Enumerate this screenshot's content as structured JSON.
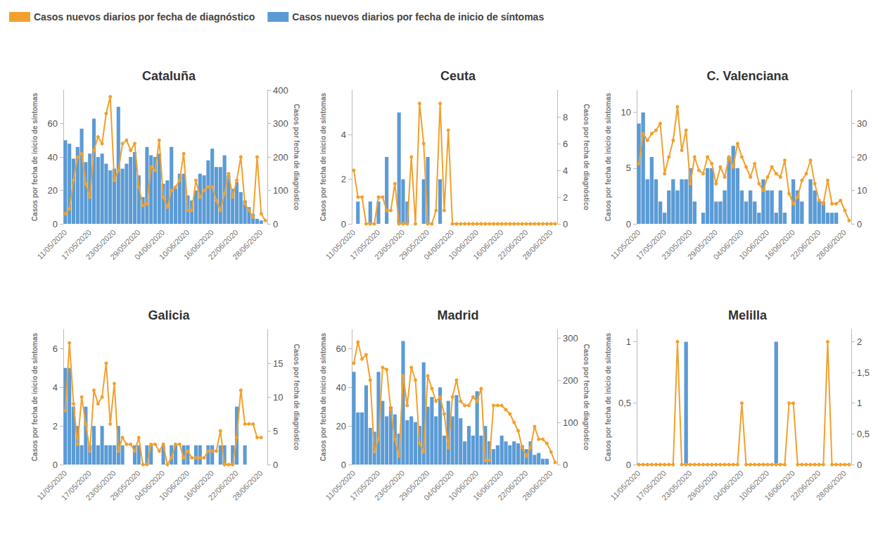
{
  "chart_data": [
    {
      "type": "bar",
      "title": "Cataluña",
      "legend": "top-left",
      "ylabel": "Casos por fecha de inicio de síntomas",
      "y2label": "Casos por fecha de diagnóstico",
      "categories": [
        "11/05/2020",
        null,
        null,
        null,
        null,
        null,
        "17/05/2020",
        null,
        null,
        null,
        null,
        null,
        "23/05/2020",
        null,
        null,
        null,
        null,
        null,
        "29/05/2020",
        null,
        null,
        null,
        null,
        null,
        "04/06/2020",
        null,
        null,
        null,
        null,
        null,
        "10/06/2020",
        null,
        null,
        null,
        null,
        null,
        "16/06/2020",
        null,
        null,
        null,
        null,
        null,
        "22/06/2020",
        null,
        null,
        null,
        null,
        null,
        "28/06/2020",
        null
      ],
      "ylim": [
        0,
        80
      ],
      "yticks": [
        0,
        20,
        40,
        60
      ],
      "y2lim": [
        0,
        400
      ],
      "y2ticks": [
        0,
        100,
        200,
        300,
        400
      ],
      "series": [
        {
          "name": "Casos nuevos diarios por fecha de diagnóstico",
          "type": "line",
          "axis": "y2",
          "color": "#f2a02c",
          "marker": "circle",
          "values": [
            30,
            45,
            130,
            200,
            210,
            120,
            80,
            220,
            260,
            240,
            330,
            380,
            130,
            160,
            240,
            250,
            220,
            240,
            110,
            55,
            60,
            170,
            160,
            250,
            80,
            50,
            100,
            110,
            130,
            210,
            40,
            40,
            130,
            80,
            100,
            110,
            110,
            70,
            40,
            90,
            150,
            80,
            130,
            200,
            60,
            40,
            20,
            200,
            30,
            10
          ]
        },
        {
          "name": "Casos nuevos diarios por fecha de inicio de síntomas",
          "type": "bar",
          "color": "#5b9bd5",
          "values": [
            50,
            48,
            39,
            46,
            57,
            37,
            42,
            63,
            40,
            42,
            36,
            32,
            33,
            70,
            33,
            36,
            40,
            43,
            29,
            16,
            46,
            41,
            40,
            42,
            24,
            26,
            46,
            21,
            30,
            30,
            17,
            14,
            20,
            30,
            29,
            38,
            45,
            34,
            34,
            41,
            29,
            21,
            25,
            19,
            14,
            10,
            6,
            3,
            2,
            0
          ]
        }
      ]
    },
    {
      "type": "bar",
      "title": "Ceuta",
      "ylabel": "Casos por fecha de inicio de síntomas",
      "y2label": "Casos por fecha de diagnóstico",
      "categories": [
        "11/05/2020",
        null,
        null,
        null,
        null,
        null,
        "17/05/2020",
        null,
        null,
        null,
        null,
        null,
        "23/05/2020",
        null,
        null,
        null,
        null,
        null,
        "29/05/2020",
        null,
        null,
        null,
        null,
        null,
        "04/06/2020",
        null,
        null,
        null,
        null,
        null,
        "10/06/2020",
        null,
        null,
        null,
        null,
        null,
        "16/06/2020",
        null,
        null,
        null,
        null,
        null,
        "22/06/2020",
        null,
        null,
        null,
        null,
        null,
        "28/06/2020",
        null
      ],
      "ylim": [
        0,
        6
      ],
      "yticks": [
        0,
        2,
        4
      ],
      "y2lim": [
        0,
        10
      ],
      "y2ticks": [
        0,
        2,
        4,
        6,
        8
      ],
      "series": [
        {
          "name": "Casos nuevos diarios por fecha de diagnóstico",
          "type": "line",
          "axis": "y2",
          "color": "#f2a02c",
          "marker": "circle",
          "values": [
            4,
            2,
            2,
            0,
            0,
            0,
            2,
            2,
            1,
            1,
            3,
            0,
            0,
            0,
            5,
            0,
            9,
            6,
            0,
            0,
            1,
            9,
            1,
            7,
            0,
            0,
            0,
            0,
            0,
            0,
            0,
            0,
            0,
            0,
            0,
            0,
            0,
            0,
            0,
            0,
            0,
            0,
            0,
            0,
            0,
            0,
            0,
            0,
            0,
            0
          ]
        },
        {
          "name": "Casos nuevos diarios por fecha de inicio de síntomas",
          "type": "bar",
          "color": "#5b9bd5",
          "values": [
            0,
            1,
            0,
            0,
            1,
            0,
            1,
            0,
            3,
            0,
            0,
            5,
            2,
            1,
            0,
            0,
            0,
            2,
            3,
            0,
            0,
            2,
            0,
            0,
            0,
            0,
            0,
            0,
            0,
            0,
            0,
            0,
            0,
            0,
            0,
            0,
            0,
            0,
            0,
            0,
            0,
            0,
            0,
            0,
            0,
            0,
            0,
            0,
            0,
            0
          ]
        }
      ]
    },
    {
      "type": "bar",
      "title": "C. Valenciana",
      "ylabel": "Casos por fecha de inicio de síntomas",
      "categories": [
        "11/05/2020",
        null,
        null,
        null,
        null,
        null,
        "17/05/2020",
        null,
        null,
        null,
        null,
        null,
        "23/05/2020",
        null,
        null,
        null,
        null,
        null,
        "29/05/2020",
        null,
        null,
        null,
        null,
        null,
        "04/06/2020",
        null,
        null,
        null,
        null,
        null,
        "10/06/2020",
        null,
        null,
        null,
        null,
        null,
        "16/06/2020",
        null,
        null,
        null,
        null,
        null,
        "22/06/2020",
        null,
        null,
        null,
        null,
        null,
        "28/06/2020",
        null
      ],
      "ylim": [
        0,
        12
      ],
      "yticks": [
        0,
        5,
        10
      ],
      "y2lim": [
        0,
        40
      ],
      "y2ticks": [
        0,
        10,
        20,
        30
      ],
      "series": [
        {
          "name": "Casos nuevos diarios por fecha de diagnóstico",
          "type": "line",
          "axis": "y2",
          "color": "#f2a02c",
          "marker": "circle",
          "values": [
            18,
            27,
            25,
            27,
            28,
            30,
            15,
            20,
            25,
            35,
            22,
            28,
            12,
            20,
            16,
            15,
            20,
            18,
            12,
            17,
            14,
            20,
            17,
            24,
            20,
            17,
            14,
            18,
            12,
            10,
            14,
            17,
            15,
            14,
            19,
            9,
            6,
            8,
            13,
            15,
            19,
            12,
            7,
            6,
            13,
            6,
            6,
            7,
            4,
            1
          ]
        },
        {
          "name": "Casos nuevos diarios por fecha de inicio de síntomas",
          "type": "bar",
          "color": "#5b9bd5",
          "values": [
            9,
            10,
            4,
            6,
            4,
            2,
            1,
            3,
            4,
            3,
            4,
            4,
            5,
            2,
            0,
            1,
            5,
            5,
            2,
            2,
            3,
            6,
            7,
            5,
            3,
            2,
            3,
            2,
            1,
            4,
            3,
            3,
            1,
            3,
            1,
            0,
            4,
            3,
            2,
            0,
            4,
            3,
            2,
            2,
            1,
            1,
            1,
            0,
            0,
            0
          ]
        }
      ]
    },
    {
      "type": "bar",
      "title": "Galicia",
      "ylabel": "Casos por fecha de inicio de síntomas",
      "y2label": "Casos por fecha de diagnóstico",
      "categories": [
        "11/05/2020",
        null,
        null,
        null,
        null,
        null,
        "17/05/2020",
        null,
        null,
        null,
        null,
        null,
        "23/05/2020",
        null,
        null,
        null,
        null,
        null,
        "29/05/2020",
        null,
        null,
        null,
        null,
        null,
        "04/06/2020",
        null,
        null,
        null,
        null,
        null,
        "10/06/2020",
        null,
        null,
        null,
        null,
        null,
        "16/06/2020",
        null,
        null,
        null,
        null,
        null,
        "22/06/2020",
        null,
        null,
        null,
        null,
        null,
        "28/06/2020",
        null
      ],
      "ylim": [
        0,
        7
      ],
      "yticks": [
        0,
        2,
        4,
        6
      ],
      "y2lim": [
        0,
        20
      ],
      "y2ticks": [
        0,
        5,
        10,
        15
      ],
      "series": [
        {
          "name": "Casos nuevos diarios por fecha de diagnóstico",
          "type": "line",
          "axis": "y2",
          "color": "#f2a02c",
          "marker": "circle",
          "values": [
            8,
            18,
            9,
            3,
            10,
            6,
            2,
            11,
            9,
            10,
            15,
            6,
            12,
            2,
            4,
            3,
            3,
            2,
            4,
            0,
            0,
            3,
            3,
            2,
            3,
            0,
            1,
            3,
            3,
            1,
            2,
            1,
            1,
            1,
            1,
            2,
            2,
            2,
            5,
            0,
            0,
            0,
            4,
            11,
            6,
            6,
            6,
            4,
            4,
            null
          ]
        },
        {
          "name": "Casos nuevos diarios por fecha de inicio de síntomas",
          "type": "bar",
          "color": "#5b9bd5",
          "values": [
            5,
            5,
            3,
            2,
            1,
            3,
            1,
            2,
            1,
            2,
            1,
            1,
            1,
            2,
            1,
            0,
            0,
            1,
            1,
            0,
            1,
            1,
            0,
            0,
            1,
            0,
            1,
            1,
            0,
            1,
            1,
            0,
            1,
            1,
            0,
            1,
            1,
            0,
            1,
            1,
            0,
            1,
            3,
            0,
            1,
            0,
            0,
            0,
            0,
            0
          ]
        }
      ]
    },
    {
      "type": "bar",
      "title": "Madrid",
      "ylabel": "Casos por fecha de inicio de síntomas",
      "y2label": "Casos por fecha de diagnóstico",
      "categories": [
        "11/05/2020",
        null,
        null,
        null,
        null,
        null,
        "17/05/2020",
        null,
        null,
        null,
        null,
        null,
        "23/05/2020",
        null,
        null,
        null,
        null,
        null,
        "29/05/2020",
        null,
        null,
        null,
        null,
        null,
        "04/06/2020",
        null,
        null,
        null,
        null,
        null,
        "10/06/2020",
        null,
        null,
        null,
        null,
        null,
        "16/06/2020",
        null,
        null,
        null,
        null,
        null,
        "22/06/2020",
        null,
        null,
        null,
        null,
        null,
        "28/06/2020",
        null
      ],
      "ylim": [
        0,
        70
      ],
      "yticks": [
        0,
        20,
        40,
        60
      ],
      "y2lim": [
        0,
        320
      ],
      "y2ticks": [
        0,
        100,
        200,
        300
      ],
      "series": [
        {
          "name": "Casos nuevos diarios por fecha de diagnóstico",
          "type": "line",
          "axis": "y2",
          "color": "#f2a02c",
          "marker": "circle",
          "values": [
            240,
            290,
            250,
            260,
            200,
            30,
            60,
            230,
            225,
            130,
            60,
            20,
            210,
            140,
            230,
            200,
            50,
            30,
            210,
            180,
            150,
            160,
            120,
            40,
            160,
            200,
            150,
            140,
            140,
            160,
            150,
            180,
            10,
            10,
            140,
            140,
            140,
            130,
            120,
            100,
            80,
            40,
            20,
            40,
            90,
            60,
            60,
            50,
            30,
            5
          ]
        },
        {
          "name": "Casos nuevos diarios por fecha de inicio de síntomas",
          "type": "bar",
          "color": "#5b9bd5",
          "values": [
            48,
            27,
            27,
            41,
            19,
            17,
            48,
            33,
            25,
            30,
            26,
            16,
            64,
            23,
            25,
            22,
            20,
            53,
            30,
            35,
            25,
            40,
            15,
            33,
            25,
            36,
            24,
            12,
            20,
            15,
            38,
            15,
            20,
            12,
            8,
            10,
            15,
            12,
            10,
            12,
            11,
            10,
            8,
            12,
            5,
            6,
            3,
            3,
            0,
            0
          ]
        }
      ]
    },
    {
      "type": "bar",
      "title": "Melilla",
      "ylabel": "Casos por fecha de inicio de síntomas",
      "categories": [
        "11/05/2020",
        null,
        null,
        null,
        null,
        null,
        "17/05/2020",
        null,
        null,
        null,
        null,
        null,
        "23/05/2020",
        null,
        null,
        null,
        null,
        null,
        "29/05/2020",
        null,
        null,
        null,
        null,
        null,
        "04/06/2020",
        null,
        null,
        null,
        null,
        null,
        "10/06/2020",
        null,
        null,
        null,
        null,
        null,
        "16/06/2020",
        null,
        null,
        null,
        null,
        null,
        "22/06/2020",
        null,
        null,
        null,
        null,
        null,
        "28/06/2020",
        null
      ],
      "ylim": [
        0,
        1.1
      ],
      "yticks": [
        0,
        {
          "value": 0.5,
          "label": "0,5"
        },
        1
      ],
      "y2lim": [
        0,
        2.2
      ],
      "y2ticks": [
        0,
        {
          "value": 0.5,
          "label": "0,5"
        },
        1,
        {
          "value": 1.5,
          "label": "1,5"
        },
        2
      ],
      "series": [
        {
          "name": "Casos nuevos diarios por fecha de diagnóstico",
          "type": "line",
          "axis": "y2",
          "color": "#f2a02c",
          "marker": "circle",
          "values": [
            0,
            0,
            0,
            0,
            0,
            0,
            0,
            0,
            0,
            2,
            0,
            0,
            0,
            0,
            0,
            0,
            0,
            0,
            0,
            0,
            0,
            0,
            0,
            0,
            1,
            0,
            0,
            0,
            0,
            0,
            0,
            0,
            0,
            0,
            0,
            1,
            1,
            0,
            0,
            0,
            0,
            0,
            0,
            0,
            2,
            0,
            0,
            0,
            0,
            0
          ]
        },
        {
          "name": "Casos nuevos diarios por fecha de inicio de síntomas",
          "type": "bar",
          "color": "#5b9bd5",
          "values": [
            0,
            0,
            0,
            0,
            0,
            0,
            0,
            0,
            0,
            0,
            0,
            1,
            0,
            0,
            0,
            0,
            0,
            0,
            0,
            0,
            0,
            0,
            0,
            0,
            0,
            0,
            0,
            0,
            0,
            0,
            0,
            0,
            1,
            0,
            0,
            0,
            0,
            0,
            0,
            0,
            0,
            0,
            0,
            0,
            0,
            0,
            0,
            0,
            0,
            0
          ]
        }
      ]
    }
  ]
}
